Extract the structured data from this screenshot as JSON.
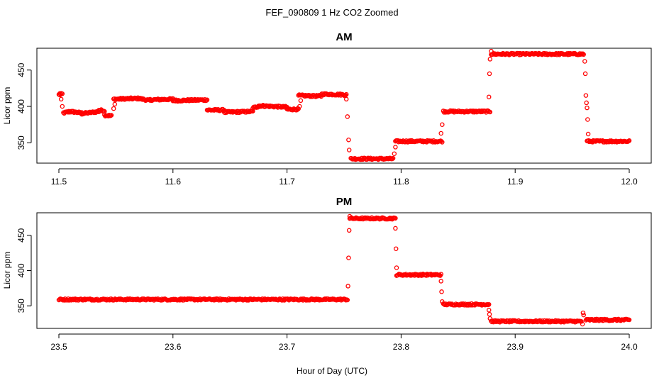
{
  "figure": {
    "title": "FEF_090809  1 Hz CO2 Zoomed",
    "xlabel": "Hour of Day (UTC)",
    "point_color": "#ff0000"
  },
  "chart_data": [
    {
      "type": "scatter",
      "title": "AM",
      "ylabel": "Licor ppm",
      "xlim": [
        11.5,
        12.0
      ],
      "ylim": [
        322,
        480
      ],
      "x_ticks": [
        11.5,
        11.6,
        11.7,
        11.8,
        11.9,
        12.0
      ],
      "x_tick_labels": [
        "11.5",
        "11.6",
        "11.7",
        "11.8",
        "11.9",
        "12.0"
      ],
      "y_ticks": [
        350,
        400,
        450
      ],
      "y_tick_labels": [
        "350",
        "400",
        "450"
      ],
      "segments": [
        {
          "x": [
            11.5,
            11.503
          ],
          "y": [
            416,
            417
          ]
        },
        {
          "x": [
            11.504,
            11.51
          ],
          "y": [
            391,
            393
          ]
        },
        {
          "x": [
            11.51,
            11.52
          ],
          "y": [
            393,
            391
          ]
        },
        {
          "x": [
            11.52,
            11.535
          ],
          "y": [
            390,
            393
          ]
        },
        {
          "x": [
            11.535,
            11.54
          ],
          "y": [
            395,
            394
          ]
        },
        {
          "x": [
            11.54,
            11.546
          ],
          "y": [
            388,
            387
          ]
        },
        {
          "x": [
            11.548,
            11.57
          ],
          "y": [
            410,
            411
          ]
        },
        {
          "x": [
            11.57,
            11.58
          ],
          "y": [
            411,
            408
          ]
        },
        {
          "x": [
            11.58,
            11.6
          ],
          "y": [
            409,
            410
          ]
        },
        {
          "x": [
            11.6,
            11.63
          ],
          "y": [
            408,
            409
          ]
        },
        {
          "x": [
            11.63,
            11.645
          ],
          "y": [
            395,
            395
          ]
        },
        {
          "x": [
            11.645,
            11.67
          ],
          "y": [
            392,
            393
          ]
        },
        {
          "x": [
            11.67,
            11.675
          ],
          "y": [
            398,
            400
          ]
        },
        {
          "x": [
            11.675,
            11.7
          ],
          "y": [
            401,
            399
          ]
        },
        {
          "x": [
            11.7,
            11.71
          ],
          "y": [
            396,
            396
          ]
        },
        {
          "x": [
            11.71,
            11.73
          ],
          "y": [
            415,
            414
          ]
        },
        {
          "x": [
            11.73,
            11.752
          ],
          "y": [
            417,
            416
          ]
        },
        {
          "x": [
            11.756,
            11.793
          ],
          "y": [
            328,
            328
          ]
        },
        {
          "x": [
            11.795,
            11.836
          ],
          "y": [
            352,
            352
          ]
        },
        {
          "x": [
            11.837,
            11.878
          ],
          "y": [
            393,
            393
          ]
        },
        {
          "x": [
            11.879,
            11.96
          ],
          "y": [
            472,
            472
          ]
        },
        {
          "x": [
            11.963,
            12.0
          ],
          "y": [
            352,
            352
          ]
        }
      ],
      "scatter_points": [
        {
          "x": 11.501,
          "y": 418
        },
        {
          "x": 11.502,
          "y": 410
        },
        {
          "x": 11.503,
          "y": 400
        },
        {
          "x": 11.548,
          "y": 397
        },
        {
          "x": 11.549,
          "y": 403
        },
        {
          "x": 11.711,
          "y": 400
        },
        {
          "x": 11.712,
          "y": 408
        },
        {
          "x": 11.752,
          "y": 410
        },
        {
          "x": 11.753,
          "y": 386
        },
        {
          "x": 11.754,
          "y": 354
        },
        {
          "x": 11.7545,
          "y": 340
        },
        {
          "x": 11.794,
          "y": 335
        },
        {
          "x": 11.795,
          "y": 344
        },
        {
          "x": 11.835,
          "y": 363
        },
        {
          "x": 11.836,
          "y": 375
        },
        {
          "x": 11.877,
          "y": 413
        },
        {
          "x": 11.8775,
          "y": 445
        },
        {
          "x": 11.878,
          "y": 465
        },
        {
          "x": 11.879,
          "y": 476
        },
        {
          "x": 11.961,
          "y": 462
        },
        {
          "x": 11.9615,
          "y": 445
        },
        {
          "x": 11.962,
          "y": 415
        },
        {
          "x": 11.9625,
          "y": 405
        },
        {
          "x": 11.963,
          "y": 398
        },
        {
          "x": 11.9635,
          "y": 382
        },
        {
          "x": 11.964,
          "y": 362
        }
      ]
    },
    {
      "type": "scatter",
      "title": "PM",
      "ylabel": "Licor ppm",
      "xlim": [
        23.5,
        24.0
      ],
      "ylim": [
        318,
        482
      ],
      "x_ticks": [
        23.5,
        23.6,
        23.7,
        23.8,
        23.9,
        24.0
      ],
      "x_tick_labels": [
        "23.5",
        "23.6",
        "23.7",
        "23.8",
        "23.9",
        "24.0"
      ],
      "y_ticks": [
        350,
        400,
        450
      ],
      "y_tick_labels": [
        "350",
        "400",
        "450"
      ],
      "segments": [
        {
          "x": [
            23.5,
            23.753
          ],
          "y": [
            359,
            359
          ]
        },
        {
          "x": [
            23.755,
            23.795
          ],
          "y": [
            474,
            474
          ]
        },
        {
          "x": [
            23.796,
            23.835
          ],
          "y": [
            394,
            394
          ]
        },
        {
          "x": [
            23.837,
            23.877
          ],
          "y": [
            352,
            352
          ]
        },
        {
          "x": [
            23.879,
            23.958
          ],
          "y": [
            328,
            328
          ]
        },
        {
          "x": [
            23.962,
            24.0
          ],
          "y": [
            330,
            330
          ]
        }
      ],
      "scatter_points": [
        {
          "x": 23.7535,
          "y": 378
        },
        {
          "x": 23.754,
          "y": 418
        },
        {
          "x": 23.7545,
          "y": 457
        },
        {
          "x": 23.755,
          "y": 477
        },
        {
          "x": 23.795,
          "y": 460
        },
        {
          "x": 23.7955,
          "y": 431
        },
        {
          "x": 23.796,
          "y": 404
        },
        {
          "x": 23.835,
          "y": 385
        },
        {
          "x": 23.8355,
          "y": 370
        },
        {
          "x": 23.836,
          "y": 356
        },
        {
          "x": 23.877,
          "y": 344
        },
        {
          "x": 23.8775,
          "y": 338
        },
        {
          "x": 23.878,
          "y": 332
        },
        {
          "x": 23.959,
          "y": 324
        },
        {
          "x": 23.9595,
          "y": 340
        },
        {
          "x": 23.96,
          "y": 337
        }
      ]
    }
  ]
}
